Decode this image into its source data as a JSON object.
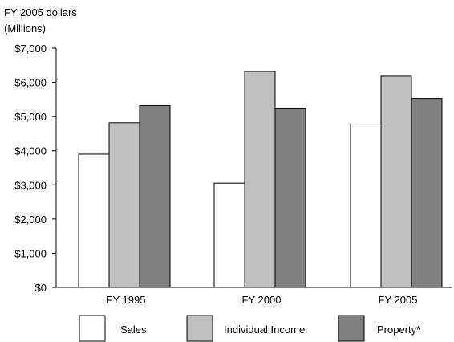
{
  "chart_data": {
    "type": "bar",
    "ylabel_line1": "FY 2005 dollars",
    "ylabel_line2": "(Millions)",
    "categories": [
      "FY 1995",
      "FY 2000",
      "FY 2005"
    ],
    "series": [
      {
        "name": "Sales",
        "values": [
          3900,
          3050,
          4780
        ],
        "color": "#ffffff"
      },
      {
        "name": "Individual Income",
        "values": [
          4820,
          6320,
          6180
        ],
        "color": "#c0c0c0"
      },
      {
        "name": "Property*",
        "values": [
          5320,
          5230,
          5530
        ],
        "color": "#808080"
      }
    ],
    "ylim": [
      0,
      7000
    ],
    "y_ticks": [
      {
        "value": 0,
        "label": "$0"
      },
      {
        "value": 1000,
        "label": "$1,000"
      },
      {
        "value": 2000,
        "label": "$2,000"
      },
      {
        "value": 3000,
        "label": "$3,000"
      },
      {
        "value": 4000,
        "label": "$4,000"
      },
      {
        "value": 5000,
        "label": "$5,000"
      },
      {
        "value": 6000,
        "label": "$6,000"
      },
      {
        "value": 7000,
        "label": "$7,000"
      }
    ],
    "grid": false,
    "legend_position": "bottom"
  }
}
